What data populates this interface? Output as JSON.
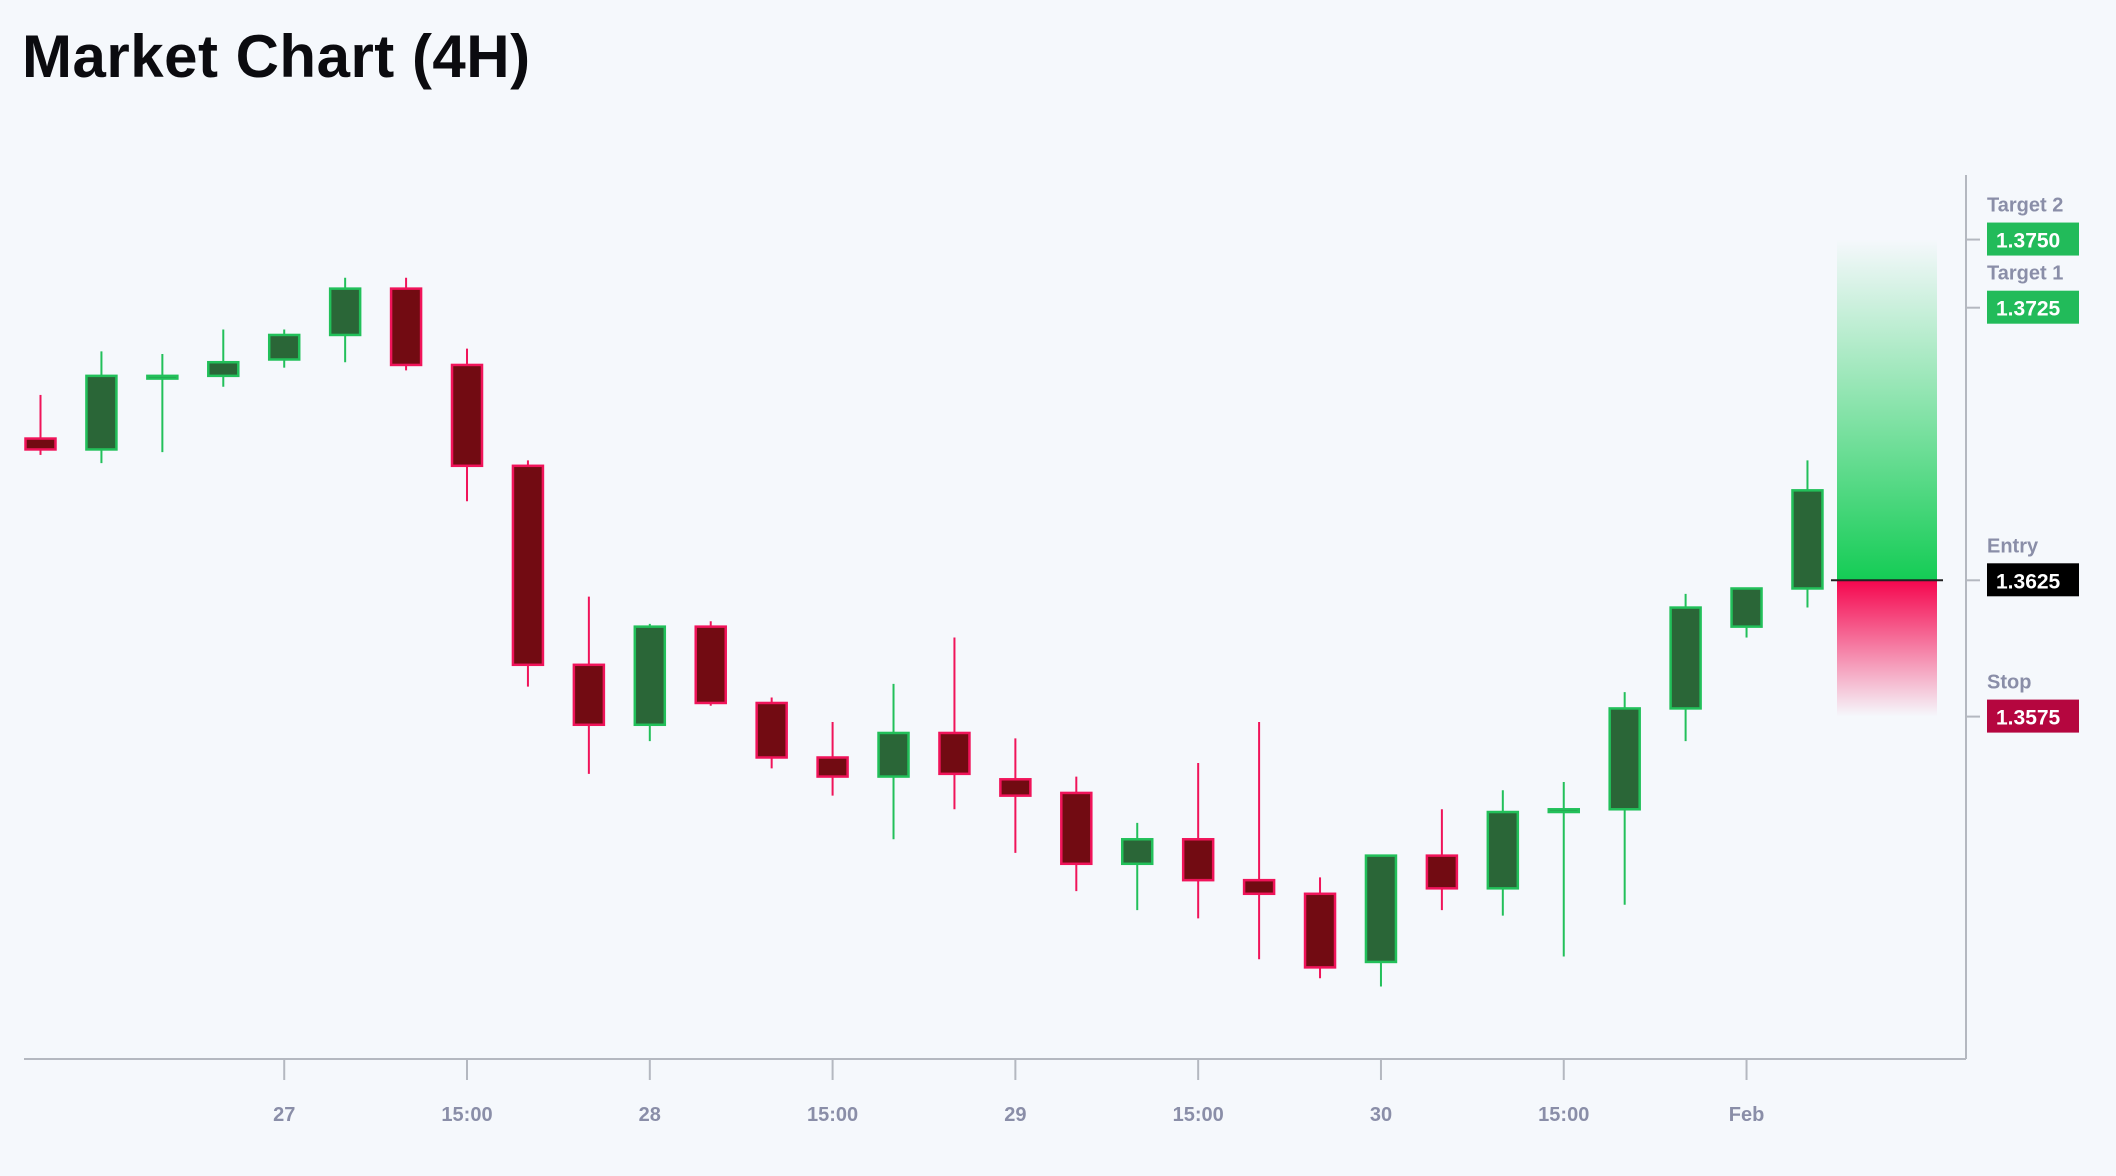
{
  "chart_data": {
    "type": "candlestick",
    "title": "Market Chart (4H)",
    "timeframe": "4H",
    "colors": {
      "background": "#f5f8fc",
      "up_body": "#2a6637",
      "up_border": "#22c05a",
      "down_body": "#720b12",
      "down_border": "#f0145a",
      "target_label": "#22bb5a",
      "entry_label": "#000000",
      "stop_label": "#b5063f",
      "axis": "#b4b8c0",
      "text": "#8a8ea8"
    },
    "ylim": [
      1.344,
      1.379
    ],
    "candles": [
      {
        "o": 1.3677,
        "h": 1.3693,
        "l": 1.3671,
        "c": 1.3673
      },
      {
        "o": 1.3673,
        "h": 1.3709,
        "l": 1.3668,
        "c": 1.37
      },
      {
        "o": 1.3699,
        "h": 1.3708,
        "l": 1.3672,
        "c": 1.37
      },
      {
        "o": 1.37,
        "h": 1.3717,
        "l": 1.3696,
        "c": 1.3705
      },
      {
        "o": 1.3706,
        "h": 1.3717,
        "l": 1.3703,
        "c": 1.3715
      },
      {
        "o": 1.3715,
        "h": 1.3736,
        "l": 1.3705,
        "c": 1.3732
      },
      {
        "o": 1.3732,
        "h": 1.3736,
        "l": 1.3702,
        "c": 1.3704
      },
      {
        "o": 1.3704,
        "h": 1.371,
        "l": 1.3654,
        "c": 1.3667
      },
      {
        "o": 1.3667,
        "h": 1.3669,
        "l": 1.3586,
        "c": 1.3594
      },
      {
        "o": 1.3594,
        "h": 1.3619,
        "l": 1.3554,
        "c": 1.3572
      },
      {
        "o": 1.3572,
        "h": 1.3609,
        "l": 1.3566,
        "c": 1.3608
      },
      {
        "o": 1.3608,
        "h": 1.361,
        "l": 1.3579,
        "c": 1.358
      },
      {
        "o": 1.358,
        "h": 1.3582,
        "l": 1.3556,
        "c": 1.356
      },
      {
        "o": 1.356,
        "h": 1.3573,
        "l": 1.3546,
        "c": 1.3553
      },
      {
        "o": 1.3553,
        "h": 1.3587,
        "l": 1.353,
        "c": 1.3569
      },
      {
        "o": 1.3569,
        "h": 1.3604,
        "l": 1.3541,
        "c": 1.3554
      },
      {
        "o": 1.3552,
        "h": 1.3567,
        "l": 1.3525,
        "c": 1.3546
      },
      {
        "o": 1.3547,
        "h": 1.3553,
        "l": 1.3511,
        "c": 1.3521
      },
      {
        "o": 1.3521,
        "h": 1.3536,
        "l": 1.3504,
        "c": 1.353
      },
      {
        "o": 1.353,
        "h": 1.3558,
        "l": 1.3501,
        "c": 1.3515
      },
      {
        "o": 1.3515,
        "h": 1.3573,
        "l": 1.3486,
        "c": 1.351
      },
      {
        "o": 1.351,
        "h": 1.3516,
        "l": 1.3479,
        "c": 1.3483
      },
      {
        "o": 1.3485,
        "h": 1.3524,
        "l": 1.3476,
        "c": 1.3524
      },
      {
        "o": 1.3524,
        "h": 1.3541,
        "l": 1.3504,
        "c": 1.3512
      },
      {
        "o": 1.3512,
        "h": 1.3548,
        "l": 1.3502,
        "c": 1.354
      },
      {
        "o": 1.354,
        "h": 1.3551,
        "l": 1.3487,
        "c": 1.3541
      },
      {
        "o": 1.3541,
        "h": 1.3584,
        "l": 1.3506,
        "c": 1.3578
      },
      {
        "o": 1.3578,
        "h": 1.362,
        "l": 1.3566,
        "c": 1.3615
      },
      {
        "o": 1.3608,
        "h": 1.3622,
        "l": 1.3604,
        "c": 1.3622
      },
      {
        "o": 1.3622,
        "h": 1.3669,
        "l": 1.3615,
        "c": 1.3658
      }
    ],
    "x_ticks": [
      {
        "label": "27",
        "candle": 4
      },
      {
        "label": "15:00",
        "candle": 7
      },
      {
        "label": "28",
        "candle": 10
      },
      {
        "label": "15:00",
        "candle": 13
      },
      {
        "label": "29",
        "candle": 16
      },
      {
        "label": "15:00",
        "candle": 19
      },
      {
        "label": "30",
        "candle": 22
      },
      {
        "label": "15:00",
        "candle": 25
      },
      {
        "label": "Feb",
        "candle": 28
      }
    ],
    "levels": [
      {
        "name": "Target 2",
        "value": "1.3750",
        "price": 1.375,
        "kind": "target"
      },
      {
        "name": "Target 1",
        "value": "1.3725",
        "price": 1.3725,
        "kind": "target"
      },
      {
        "name": "Entry",
        "value": "1.3625",
        "price": 1.3625,
        "kind": "entry"
      },
      {
        "name": "Stop",
        "value": "1.3575",
        "price": 1.3575,
        "kind": "stop"
      }
    ],
    "position": {
      "side": "long",
      "entry": 1.3625,
      "stop": 1.3575,
      "target": 1.375
    }
  }
}
